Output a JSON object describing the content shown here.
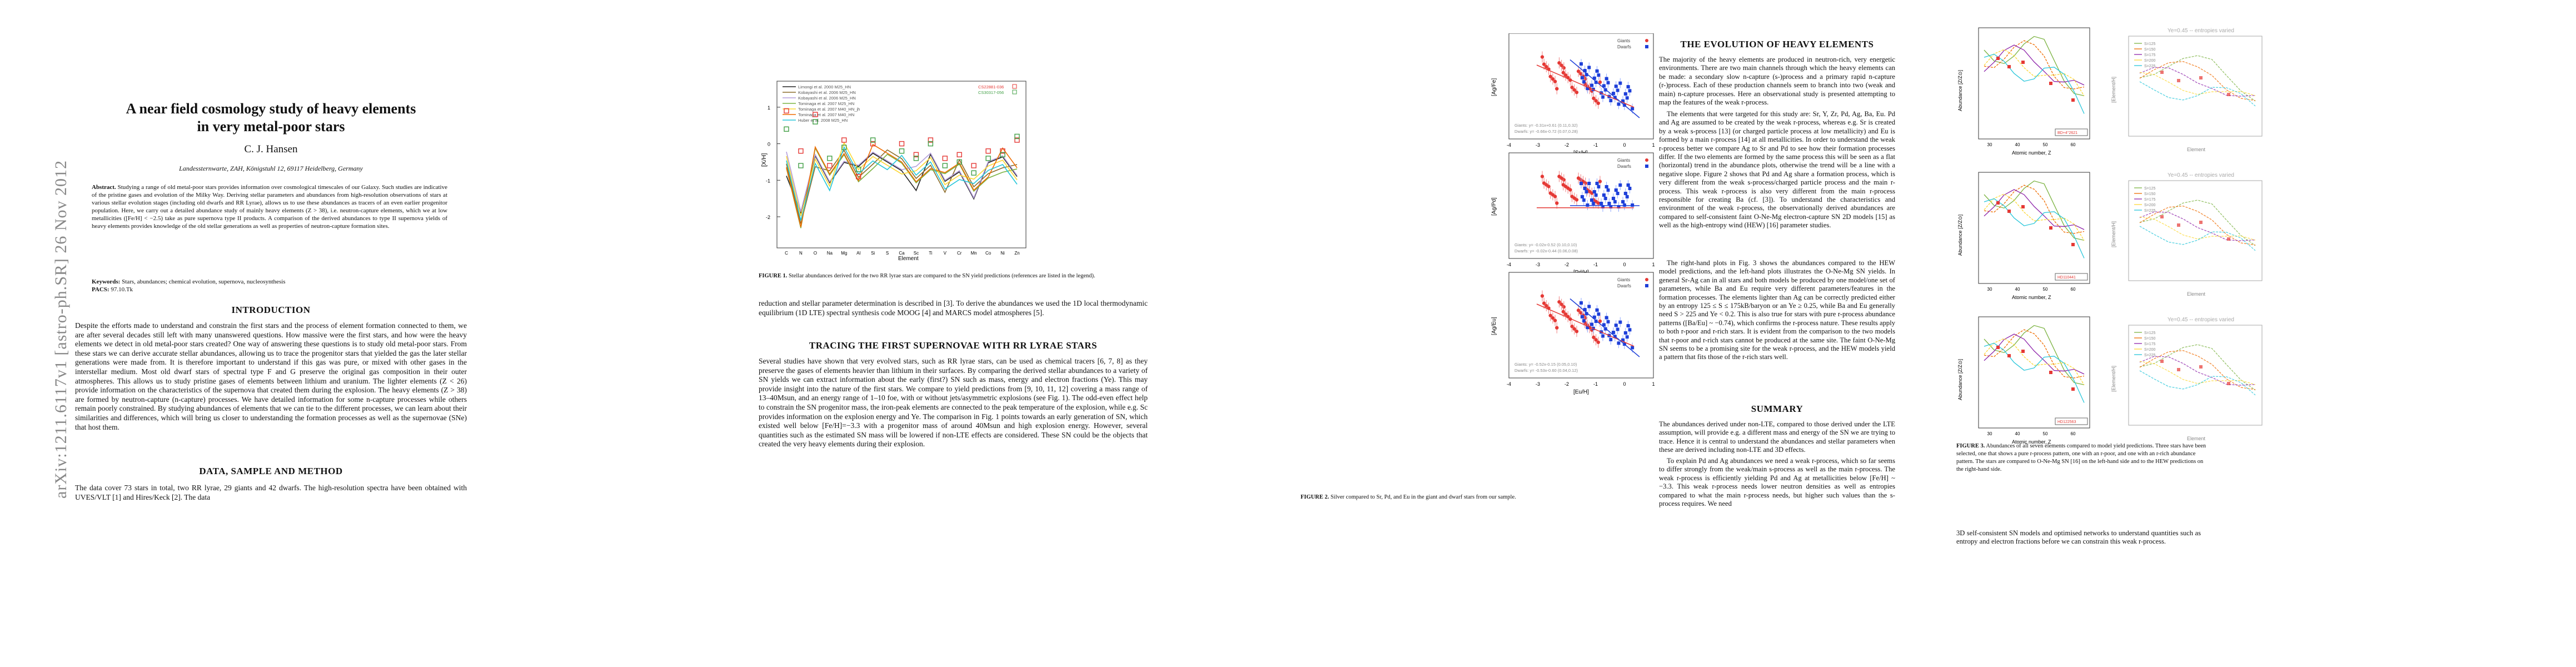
{
  "arxiv_id": "arXiv:1211.6117v1  [astro-ph.SR]  26 Nov 2012",
  "title_line1": "A near field cosmology study of heavy elements",
  "title_line2": "in very metal-poor stars",
  "author": "C. J. Hansen",
  "affiliation": "Landessternwarte, ZAH, Königstuhl 12, 69117 Heidelberg, Germany",
  "abstract_label": "Abstract.",
  "abstract": "Studying a range of old metal-poor stars provides information over cosmological timescales of our Galaxy. Such studies are indicative of the pristine gases and evolution of the Milky Way. Deriving stellar parameters and abundances from high-resolution observations of stars at various stellar evolution stages (including old dwarfs and RR Lyrae), allows us to use these abundances as tracers of an even earlier progenitor population. Here, we carry out a detailed abundance study of mainly heavy elements (Z > 38), i.e. neutron-capture elements, which we at low metallicities ([Fe/H] < −2.5) take as pure supernova type II products. A comparison of the derived abundances to type II supernova yields of heavy elements provides knowledge of the old stellar generations as well as properties of neutron-capture formation sites.",
  "keywords_label": "Keywords:",
  "keywords": "Stars, abundances; chemical evolution, supernova, nucleosynthesis",
  "pacs_label": "PACS:",
  "pacs": "97.10.Tk",
  "sections": {
    "intro": "INTRODUCTION",
    "data": "DATA, SAMPLE AND METHOD",
    "tracing": "TRACING THE FIRST SUPERNOVAE WITH RR LYRAE STARS",
    "evolution": "THE EVOLUTION OF HEAVY ELEMENTS",
    "summary": "SUMMARY"
  },
  "intro_text": "Despite the efforts made to understand and constrain the first stars and the process of element formation connected to them, we are after several decades still left with many unanswered questions. How massive were the first stars, and how were the heavy elements we detect in old metal-poor stars created? One way of answering these questions is to study old metal-poor stars. From these stars we can derive accurate stellar abundances, allowing us to trace the progenitor stars that yielded the gas the later stellar generations were made from. It is therefore important to understand if this gas was pure, or mixed with other gases in the interstellar medium. Most old dwarf stars of spectral type F and G preserve the original gas composition in their outer atmospheres. This allows us to study pristine gases of elements between lithium and uranium. The lighter elements (Z < 26) provide information on the characteristics of the supernova that created them during the explosion. The heavy elements (Z > 38) are formed by neutron-capture (n-capture) processes. We have detailed information for some n-capture processes while others remain poorly constrained. By studying abundances of elements that we can tie to the different processes, we can learn about their similarities and differences, which will bring us closer to understanding the formation processes as well as the supernovae (SNe) that host them.",
  "data_text": "The data cover 73 stars in total, two RR lyrae, 29 giants and 42 dwarfs. The high-resolution spectra have been obtained with UVES/VLT [1] and Hires/Keck [2]. The data",
  "p2_text1": "reduction and stellar parameter determination is described in [3]. To derive the abundances we used the 1D local thermodynamic equilibrium (1D LTE) spectral synthesis code MOOG [4] and MARCS model atmospheres [5].",
  "tracing_text": "Several studies have shown that very evolved stars, such as RR lyrae stars, can be used as chemical tracers [6, 7, 8] as they preserve the gases of elements heavier than lithium in their surfaces. By comparing the derived stellar abundances to a variety of SN yields we can extract information about the early (first?) SN such as mass, energy and electron fractions (Ye). This may provide insight into the nature of the first stars. We compare to yield predictions from [9, 10, 11, 12] covering a mass range of 13–40Msun, and an energy range of 1–10 foe, with or without jets/asymmetric explosions (see Fig. 1). The odd-even effect help to constrain the SN progenitor mass, the iron-peak elements are connected to the peak temperature of the explosion, while e.g. Sc provides information on the explosion energy and Ye. The comparison in Fig. 1 points towards an early generation of SN, which existed well below [Fe/H]=−3.3 with a progenitor mass of around 40Msun and high explosion energy. However, several quantities such as the estimated SN mass will be lowered if non-LTE effects are considered. These SN could be the objects that created the very heavy elements during their explosion.",
  "fig1_caption_label": "FIGURE 1.",
  "fig1_caption": "Stellar abundances derived for the two RR lyrae stars are compared to the SN yield predictions (references are listed in the legend).",
  "fig2_caption_label": "FIGURE 2.",
  "fig2_caption": "Silver compared to Sr, Pd, and Eu in the giant and dwarf stars from our sample.",
  "fig3_caption_label": "FIGURE 3.",
  "fig3_caption": "Abundances of all seven elements compared to model yield predictions. Three stars have been selected, one that shows a pure r-process pattern, one with an r-poor, and one with an r-rich abundance pattern. The stars are compared to O-Ne-Mg SN [16] on the left-hand side and to the HEW predictions on the right-hand side.",
  "evolution_text": "The majority of the heavy elements are produced in neutron-rich, very energetic environments. There are two main channels through which the heavy elements can be made: a secondary slow n-capture (s-)process and a primary rapid n-capture (r-)process. Each of these production channels seem to branch into two (weak and main) n-capture processes. Here an observational study is presented attempting to map the features of the weak r-process.",
  "evolution_text2": "The elements that were targeted for this study are: Sr, Y, Zr, Pd, Ag, Ba, Eu. Pd and Ag are assumed to be created by the weak r-process, whereas e.g. Sr is created by a weak s-process [13] (or charged particle process at low metallicity) and Eu is formed by a main r-process [14] at all metallicities. In order to understand the weak r-process better we compare Ag to Sr and Pd to see how their formation processes differ. If the two elements are formed by the same process this will be seen as a flat (horizontal) trend in the abundance plots, otherwise the trend will be a line with a negative slope. Figure 2 shows that Pd and Ag share a formation process, which is very different from the weak s-process/charged particle process and the main r-process. This weak r-process is also very different from the main r-process responsible for creating Ba (cf. [3]). To understand the characteristics and environment of the weak r-process, the observationally derived abundances are compared to self-consistent faint O-Ne-Mg electron-capture SN 2D models [15] as well as the high-entropy wind (HEW) [16] parameter studies.",
  "evolution_text3": "The right-hand plots in Fig. 3 shows the abundances compared to the HEW model predictions, and the left-hand plots illustrates the O-Ne-Mg SN yields. In general Sr-Ag can in all stars and both models be produced by one model/one set of parameters, while Ba and Eu require very different parameters/features in the formation processes. The elements lighter than Ag can be correctly predicted either by an entropy 125 ≤ S ≤ 175kB/baryon or an Ye ≥ 0.25, while Ba and Eu generally need S > 225 and Ye < 0.2. This is also true for stars with pure r-process abundance patterns ([Ba/Eu] ~ −0.74), which confirms the r-process nature. These results apply to both r-poor and r-rich stars. It is evident from the comparison to the two models that r-poor and r-rich stars cannot be produced at the same site. The faint O-Ne-Mg SN seems to be a promising site for the weak r-process, and the HEW models yield a pattern that fits those of the r-rich stars well.",
  "summary_text": "The abundances derived under non-LTE, compared to those derived under the LTE assumption, will provide e.g. a different mass and energy of the SN we are trying to trace. Hence it is central to understand the abundances and stellar parameters when these are derived including non-LTE and 3D effects.",
  "summary_text2": "To explain Pd and Ag abundances we need a weak r-process, which so far seems to differ strongly from the weak/main s-process as well as the main r-process. The weak r-process is efficiently yielding Pd and Ag at metallicities below [Fe/H] ~ −3.3. This weak r-process needs lower neutron densities as well as entropies compared to what the main r-process needs, but higher such values than the s-process requires. We need",
  "p4_text": "3D self-consistent SN models and optimised networks to understand quantities such as entropy and electron fractions before we can constrain this weak r-process.",
  "fig1": {
    "ylabel": "[X/H]",
    "xlabel": "Element",
    "legend": [
      {
        "name": "Limongi et al. 2000  M25_HN",
        "color": "#222222"
      },
      {
        "name": "Kobayashi et al. 2006  M25_HN",
        "color": "#8c6d2c"
      },
      {
        "name": "Kobayashi et al. 2006  M25_HN",
        "color": "#b39ddb"
      },
      {
        "name": "Tominaga et al. 2007  M25_HN",
        "color": "#7cb342"
      },
      {
        "name": "Tominaga et al. 2007  M40_HN_jh",
        "color": "#fdd835"
      },
      {
        "name": "Tominaga et al. 2007  M40_HN",
        "color": "#ef6c00"
      },
      {
        "name": "Huber et al. 2008  M25_HN",
        "color": "#26c6da"
      }
    ],
    "stars": [
      {
        "name": "CS22881-036",
        "color": "#e53935"
      },
      {
        "name": "CS30317-056",
        "color": "#43a047"
      }
    ],
    "elements": [
      "C",
      "N",
      "O",
      "Na",
      "Mg",
      "Al",
      "Si",
      "S",
      "Ca",
      "Sc",
      "Ti",
      "V",
      "Cr",
      "Mn",
      "Co",
      "Ni",
      "Zn"
    ],
    "yticks": [
      "1",
      "0",
      "-1",
      "-2"
    ]
  },
  "fig2": {
    "panels": [
      {
        "ylabel": "[Ag/Fe]",
        "xlabel": "[Sr/H]",
        "legend": [
          "Giants",
          "Dwarfs"
        ],
        "fit1": "Giants: y= -0.31x+0.61 (0.11,0.32)",
        "fit2": "Dwarfs: y= -0.66x-0.72 (0.07,0.28)"
      },
      {
        "ylabel": "[Ag/Pd]",
        "xlabel": "[Pd/H]",
        "legend": [
          "Giants",
          "Dwarfs"
        ],
        "fit1": "Giants: y= -0.02x-0.52 (0.10,0.10)",
        "fit2": "Dwarfs: y= -0.02x-0.44 (0.06,0.08)"
      },
      {
        "ylabel": "[Ag/Eu]",
        "xlabel": "[Eu/H]",
        "legend": [
          "Giants",
          "Dwarfs"
        ],
        "fit1": "Giants: y= -0.52x-0.15 (0.05,0.10)",
        "fit2": "Dwarfs: y= -0.53x-0.60 (0.04,0.12)"
      }
    ],
    "xticks": [
      "-4",
      "-3",
      "-2",
      "-1",
      "0",
      "1"
    ]
  },
  "fig3": {
    "left_xlabel": "Atomic number, Z",
    "ylabel": "Abundance [Z/Z⊙]",
    "right_title": "Ye=0.45 -- entropies varied",
    "right_xlabel": "Element",
    "right_ylabel": "[Element/H]",
    "stars": [
      "BD+4°2621",
      "HD110441",
      "HD122563"
    ],
    "right_legend": [
      "S=125",
      "S=150",
      "S=175",
      "S=200",
      "S=225"
    ]
  }
}
